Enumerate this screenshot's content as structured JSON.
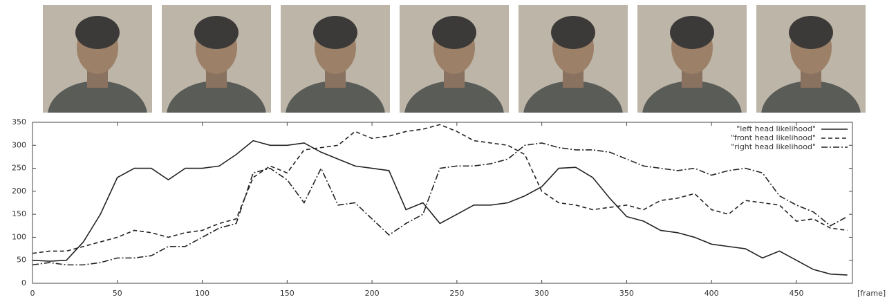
{
  "chart_data": {
    "type": "line",
    "x_label": "[frame]",
    "x": [
      0,
      10,
      20,
      30,
      40,
      50,
      60,
      70,
      80,
      90,
      100,
      110,
      120,
      130,
      140,
      150,
      160,
      170,
      180,
      190,
      200,
      210,
      220,
      230,
      240,
      250,
      260,
      270,
      280,
      290,
      300,
      310,
      320,
      330,
      340,
      350,
      360,
      370,
      380,
      390,
      400,
      410,
      420,
      430,
      440,
      450,
      460,
      470,
      480
    ],
    "series": [
      {
        "name": "\"left head likelihood\"",
        "color": "#222222",
        "line_style": "solid",
        "values": [
          50,
          48,
          50,
          90,
          150,
          230,
          250,
          250,
          225,
          250,
          250,
          255,
          280,
          310,
          300,
          300,
          305,
          285,
          270,
          255,
          250,
          245,
          160,
          175,
          130,
          150,
          170,
          170,
          175,
          190,
          210,
          250,
          252,
          230,
          185,
          145,
          135,
          115,
          110,
          100,
          85,
          80,
          75,
          55,
          70,
          50,
          30,
          20,
          18
        ]
      },
      {
        "name": "\"front head likelihood\"",
        "color": "#222222",
        "line_style": "dashed",
        "values": [
          65,
          70,
          70,
          80,
          90,
          100,
          115,
          110,
          100,
          110,
          115,
          130,
          140,
          230,
          255,
          240,
          290,
          295,
          300,
          330,
          315,
          320,
          330,
          335,
          345,
          330,
          310,
          305,
          300,
          280,
          200,
          175,
          170,
          160,
          165,
          170,
          160,
          180,
          185,
          195,
          160,
          150,
          180,
          175,
          170,
          135,
          140,
          120,
          115
        ]
      },
      {
        "name": "\"right head likelihood\"",
        "color": "#222222",
        "line_style": "dash-dot",
        "values": [
          40,
          45,
          40,
          40,
          45,
          55,
          55,
          60,
          80,
          80,
          100,
          120,
          130,
          240,
          250,
          225,
          175,
          250,
          170,
          175,
          140,
          105,
          130,
          150,
          250,
          255,
          255,
          260,
          270,
          300,
          305,
          295,
          290,
          290,
          285,
          270,
          255,
          250,
          245,
          250,
          235,
          245,
          250,
          240,
          190,
          170,
          155,
          125,
          145
        ]
      }
    ],
    "xlim": [
      0,
      483
    ],
    "ylim": [
      0,
      350
    ],
    "xticks": [
      0,
      50,
      100,
      150,
      200,
      250,
      300,
      350,
      400,
      450
    ],
    "yticks": [
      0,
      50,
      100,
      150,
      200,
      250,
      300,
      350
    ],
    "legend": "top-right"
  }
}
